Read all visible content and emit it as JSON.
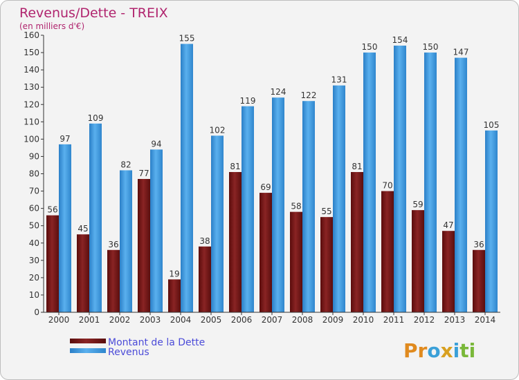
{
  "colors": {
    "debt": "#7a1a1a",
    "revenue": "#4a9fe0",
    "title": "#b0246e",
    "legend_text": "#4b4bd8"
  },
  "logo": {
    "letters": [
      "P",
      "r",
      "o",
      "x",
      "i",
      "t",
      "i"
    ],
    "colors": [
      "#e08a1e",
      "#e08a1e",
      "#3aa0d8",
      "#d8a020",
      "#3aa0d8",
      "#7ab83a",
      "#7ab83a"
    ]
  },
  "chart_data": {
    "type": "bar",
    "title": "Revenus/Dette - TREIX",
    "subtitle": "(en milliers d'€)",
    "xlabel": "",
    "ylabel": "",
    "ylim": [
      0,
      160
    ],
    "yticks": [
      0,
      10,
      20,
      30,
      40,
      50,
      60,
      70,
      80,
      90,
      100,
      110,
      120,
      130,
      140,
      150,
      160
    ],
    "categories": [
      "2000",
      "2001",
      "2002",
      "2003",
      "2004",
      "2005",
      "2006",
      "2007",
      "2008",
      "2009",
      "2010",
      "2011",
      "2012",
      "2013",
      "2014"
    ],
    "series": [
      {
        "name": "Montant de la Dette",
        "key": "debt",
        "values": [
          56,
          45,
          36,
          77,
          19,
          38,
          81,
          69,
          58,
          55,
          81,
          70,
          59,
          47,
          36
        ]
      },
      {
        "name": "Revenus",
        "key": "revenue",
        "values": [
          97,
          109,
          82,
          94,
          155,
          102,
          119,
          124,
          122,
          131,
          150,
          154,
          150,
          147,
          105
        ]
      }
    ],
    "legend": "bottom-left",
    "grid": false
  }
}
